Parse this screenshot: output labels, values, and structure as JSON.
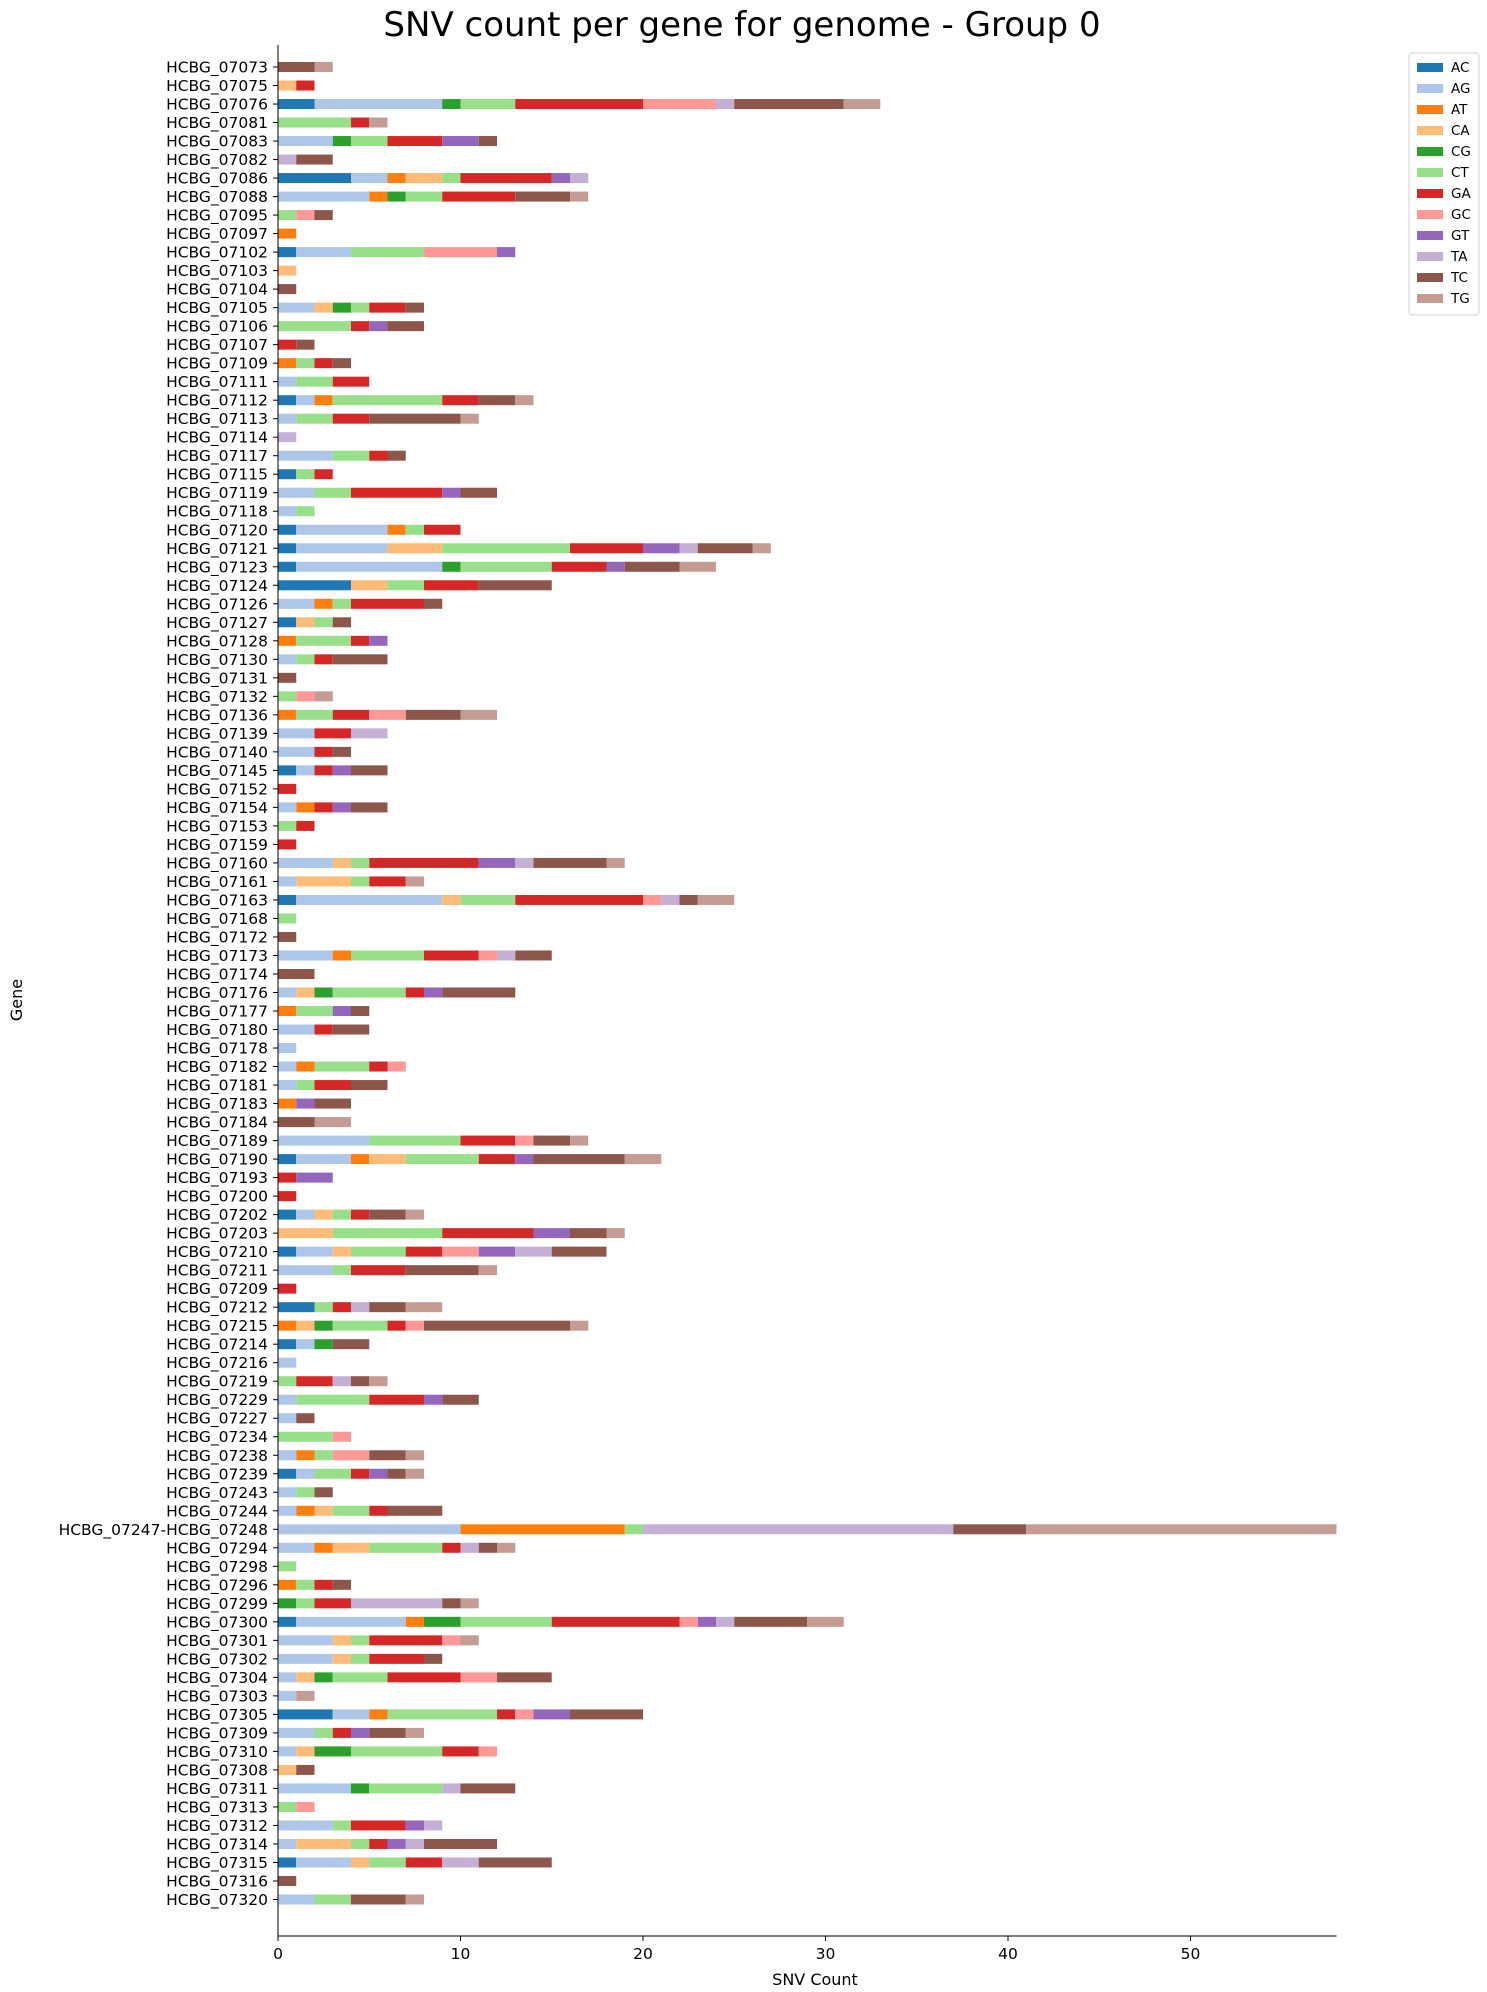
{
  "chart_data": {
    "type": "bar",
    "orientation": "horizontal",
    "stacked": true,
    "title": "SNV count per gene for genome - Group 0",
    "xlabel": "SNV Count",
    "ylabel": "Gene",
    "xlim": [
      0,
      58
    ],
    "xticks": [
      0,
      10,
      20,
      30,
      40,
      50
    ],
    "legend_position": "top-right (outside)",
    "grid": false,
    "colors": {
      "AC": "#1f77b4",
      "AG": "#aec7e8",
      "AT": "#ff7f0e",
      "CA": "#ffbb78",
      "CG": "#2ca02c",
      "CT": "#98df8a",
      "GA": "#d62728",
      "GC": "#ff9896",
      "GT": "#9467bd",
      "TA": "#c5b0d5",
      "TC": "#8c564b",
      "TG": "#c49c94"
    },
    "series_names": [
      "AC",
      "AG",
      "AT",
      "CA",
      "CG",
      "CT",
      "GA",
      "GC",
      "GT",
      "TA",
      "TC",
      "TG"
    ],
    "genes": [
      {
        "label": "HCBG_07073",
        "v": {
          "TC": 2,
          "TG": 1
        }
      },
      {
        "label": "HCBG_07075",
        "v": {
          "CA": 1,
          "GA": 1
        }
      },
      {
        "label": "HCBG_07076",
        "v": {
          "AC": 2,
          "AG": 7,
          "CG": 1,
          "CT": 3,
          "GA": 7,
          "GC": 4,
          "TA": 1,
          "TC": 6,
          "TG": 2
        }
      },
      {
        "label": "HCBG_07081",
        "v": {
          "CT": 4,
          "GA": 1,
          "TG": 1
        }
      },
      {
        "label": "HCBG_07083",
        "v": {
          "AG": 3,
          "CG": 1,
          "CT": 2,
          "GA": 3,
          "GT": 2,
          "TC": 1
        }
      },
      {
        "label": "HCBG_07082",
        "v": {
          "TA": 1,
          "TC": 2
        }
      },
      {
        "label": "HCBG_07086",
        "v": {
          "AC": 4,
          "AG": 2,
          "AT": 1,
          "CA": 2,
          "CT": 1,
          "GA": 5,
          "GT": 1,
          "TA": 1
        }
      },
      {
        "label": "HCBG_07088",
        "v": {
          "AG": 5,
          "AT": 1,
          "CG": 1,
          "CT": 2,
          "GA": 4,
          "TC": 3,
          "TG": 1
        }
      },
      {
        "label": "HCBG_07095",
        "v": {
          "CT": 1,
          "GC": 1,
          "TC": 1
        }
      },
      {
        "label": "HCBG_07097",
        "v": {
          "AT": 1
        }
      },
      {
        "label": "HCBG_07102",
        "v": {
          "AC": 1,
          "AG": 3,
          "CT": 4,
          "GC": 4,
          "GT": 1
        }
      },
      {
        "label": "HCBG_07103",
        "v": {
          "CA": 1
        }
      },
      {
        "label": "HCBG_07104",
        "v": {
          "TC": 1
        }
      },
      {
        "label": "HCBG_07105",
        "v": {
          "AG": 2,
          "CA": 1,
          "CG": 1,
          "CT": 1,
          "GA": 2,
          "TC": 1
        }
      },
      {
        "label": "HCBG_07106",
        "v": {
          "CT": 4,
          "GA": 1,
          "GT": 1,
          "TC": 2
        }
      },
      {
        "label": "HCBG_07107",
        "v": {
          "GA": 1,
          "TC": 1
        }
      },
      {
        "label": "HCBG_07109",
        "v": {
          "AT": 1,
          "CT": 1,
          "GA": 1,
          "TC": 1
        }
      },
      {
        "label": "HCBG_07111",
        "v": {
          "AG": 1,
          "CT": 2,
          "GA": 2
        }
      },
      {
        "label": "HCBG_07112",
        "v": {
          "AC": 1,
          "AG": 1,
          "AT": 1,
          "CT": 6,
          "GA": 2,
          "TC": 2,
          "TG": 1
        }
      },
      {
        "label": "HCBG_07113",
        "v": {
          "AG": 1,
          "CT": 2,
          "GA": 2,
          "TC": 5,
          "TG": 1
        }
      },
      {
        "label": "HCBG_07114",
        "v": {
          "TA": 1
        }
      },
      {
        "label": "HCBG_07117",
        "v": {
          "AG": 3,
          "CT": 2,
          "GA": 1,
          "TC": 1
        }
      },
      {
        "label": "HCBG_07115",
        "v": {
          "AC": 1,
          "CT": 1,
          "GA": 1
        }
      },
      {
        "label": "HCBG_07119",
        "v": {
          "AG": 2,
          "CT": 2,
          "GA": 5,
          "GT": 1,
          "TC": 2
        }
      },
      {
        "label": "HCBG_07118",
        "v": {
          "AG": 1,
          "CT": 1
        }
      },
      {
        "label": "HCBG_07120",
        "v": {
          "AC": 1,
          "AG": 5,
          "AT": 1,
          "CT": 1,
          "GA": 2
        }
      },
      {
        "label": "HCBG_07121",
        "v": {
          "AC": 1,
          "AG": 5,
          "CA": 3,
          "CT": 7,
          "GA": 4,
          "GT": 2,
          "TA": 1,
          "TC": 3,
          "TG": 1
        }
      },
      {
        "label": "HCBG_07123",
        "v": {
          "AC": 1,
          "AG": 8,
          "CG": 1,
          "CT": 5,
          "GA": 3,
          "GT": 1,
          "TC": 3,
          "TG": 2
        }
      },
      {
        "label": "HCBG_07124",
        "v": {
          "AC": 4,
          "CA": 2,
          "CT": 2,
          "GA": 3,
          "TC": 4
        }
      },
      {
        "label": "HCBG_07126",
        "v": {
          "AG": 2,
          "AT": 1,
          "CT": 1,
          "GA": 4,
          "TC": 1
        }
      },
      {
        "label": "HCBG_07127",
        "v": {
          "AC": 1,
          "CA": 1,
          "CT": 1,
          "TC": 1
        }
      },
      {
        "label": "HCBG_07128",
        "v": {
          "AT": 1,
          "CT": 3,
          "GA": 1,
          "GT": 1
        }
      },
      {
        "label": "HCBG_07130",
        "v": {
          "AG": 1,
          "CT": 1,
          "GA": 1,
          "TC": 3
        }
      },
      {
        "label": "HCBG_07131",
        "v": {
          "TC": 1
        }
      },
      {
        "label": "HCBG_07132",
        "v": {
          "CT": 1,
          "GC": 1,
          "TG": 1
        }
      },
      {
        "label": "HCBG_07136",
        "v": {
          "AT": 1,
          "CT": 2,
          "GA": 2,
          "GC": 2,
          "TC": 3,
          "TG": 2
        }
      },
      {
        "label": "HCBG_07139",
        "v": {
          "AG": 2,
          "GA": 2,
          "TA": 2
        }
      },
      {
        "label": "HCBG_07140",
        "v": {
          "AG": 2,
          "GA": 1,
          "TC": 1
        }
      },
      {
        "label": "HCBG_07145",
        "v": {
          "AC": 1,
          "AG": 1,
          "GA": 1,
          "GT": 1,
          "TC": 2
        }
      },
      {
        "label": "HCBG_07152",
        "v": {
          "GA": 1
        }
      },
      {
        "label": "HCBG_07154",
        "v": {
          "AG": 1,
          "AT": 1,
          "GA": 1,
          "GT": 1,
          "TC": 2
        }
      },
      {
        "label": "HCBG_07153",
        "v": {
          "CT": 1,
          "GA": 1
        }
      },
      {
        "label": "HCBG_07159",
        "v": {
          "GA": 1
        }
      },
      {
        "label": "HCBG_07160",
        "v": {
          "AG": 3,
          "CA": 1,
          "CT": 1,
          "GA": 6,
          "GT": 2,
          "TA": 1,
          "TC": 4,
          "TG": 1
        }
      },
      {
        "label": "HCBG_07161",
        "v": {
          "AG": 1,
          "CA": 3,
          "CT": 1,
          "GA": 2,
          "TG": 1
        }
      },
      {
        "label": "HCBG_07163",
        "v": {
          "AC": 1,
          "AG": 8,
          "CA": 1,
          "CT": 3,
          "GA": 7,
          "GC": 1,
          "TA": 1,
          "TC": 1,
          "TG": 2
        }
      },
      {
        "label": "HCBG_07168",
        "v": {
          "CT": 1
        }
      },
      {
        "label": "HCBG_07172",
        "v": {
          "TC": 1
        }
      },
      {
        "label": "HCBG_07173",
        "v": {
          "AG": 3,
          "AT": 1,
          "CT": 4,
          "GA": 3,
          "GC": 1,
          "TA": 1,
          "TC": 2
        }
      },
      {
        "label": "HCBG_07174",
        "v": {
          "TC": 2
        }
      },
      {
        "label": "HCBG_07176",
        "v": {
          "AG": 1,
          "CA": 1,
          "CG": 1,
          "CT": 4,
          "GA": 1,
          "GT": 1,
          "TC": 4
        }
      },
      {
        "label": "HCBG_07177",
        "v": {
          "AT": 1,
          "CT": 2,
          "GT": 1,
          "TC": 1
        }
      },
      {
        "label": "HCBG_07180",
        "v": {
          "AG": 2,
          "GA": 1,
          "TC": 2
        }
      },
      {
        "label": "HCBG_07178",
        "v": {
          "AG": 1
        }
      },
      {
        "label": "HCBG_07182",
        "v": {
          "AG": 1,
          "AT": 1,
          "CT": 3,
          "GA": 1,
          "GC": 1
        }
      },
      {
        "label": "HCBG_07181",
        "v": {
          "AG": 1,
          "CT": 1,
          "GA": 2,
          "TC": 2
        }
      },
      {
        "label": "HCBG_07183",
        "v": {
          "AT": 1,
          "GT": 1,
          "TC": 2
        }
      },
      {
        "label": "HCBG_07184",
        "v": {
          "TC": 2,
          "TG": 2
        }
      },
      {
        "label": "HCBG_07189",
        "v": {
          "AG": 5,
          "CT": 5,
          "GA": 3,
          "GC": 1,
          "TC": 2,
          "TG": 1
        }
      },
      {
        "label": "HCBG_07190",
        "v": {
          "AC": 1,
          "AG": 3,
          "AT": 1,
          "CA": 2,
          "CT": 4,
          "GA": 2,
          "GT": 1,
          "TC": 5,
          "TG": 2
        }
      },
      {
        "label": "HCBG_07193",
        "v": {
          "GA": 1,
          "GT": 2
        }
      },
      {
        "label": "HCBG_07200",
        "v": {
          "GA": 1
        }
      },
      {
        "label": "HCBG_07202",
        "v": {
          "AC": 1,
          "AG": 1,
          "CA": 1,
          "CT": 1,
          "GA": 1,
          "TC": 2,
          "TG": 1
        }
      },
      {
        "label": "HCBG_07203",
        "v": {
          "CA": 3,
          "CT": 6,
          "GA": 5,
          "GT": 2,
          "TC": 2,
          "TG": 1
        }
      },
      {
        "label": "HCBG_07210",
        "v": {
          "AC": 1,
          "AG": 2,
          "CA": 1,
          "CT": 3,
          "GA": 2,
          "GC": 2,
          "GT": 2,
          "TA": 2,
          "TC": 3
        }
      },
      {
        "label": "HCBG_07211",
        "v": {
          "AG": 3,
          "CT": 1,
          "GA": 3,
          "TC": 4,
          "TG": 1
        }
      },
      {
        "label": "HCBG_07209",
        "v": {
          "GA": 1
        }
      },
      {
        "label": "HCBG_07212",
        "v": {
          "AC": 2,
          "CT": 1,
          "GA": 1,
          "TA": 1,
          "TC": 2,
          "TG": 2
        }
      },
      {
        "label": "HCBG_07215",
        "v": {
          "AT": 1,
          "CA": 1,
          "CG": 1,
          "CT": 3,
          "GA": 1,
          "GC": 1,
          "TC": 8,
          "TG": 1
        }
      },
      {
        "label": "HCBG_07214",
        "v": {
          "AC": 1,
          "AG": 1,
          "CG": 1,
          "TC": 2
        }
      },
      {
        "label": "HCBG_07216",
        "v": {
          "AG": 1
        }
      },
      {
        "label": "HCBG_07219",
        "v": {
          "CT": 1,
          "GA": 2,
          "TA": 1,
          "TC": 1,
          "TG": 1
        }
      },
      {
        "label": "HCBG_07229",
        "v": {
          "AG": 1,
          "CT": 4,
          "GA": 3,
          "GT": 1,
          "TC": 2
        }
      },
      {
        "label": "HCBG_07227",
        "v": {
          "AG": 1,
          "TC": 1
        }
      },
      {
        "label": "HCBG_07234",
        "v": {
          "CT": 3,
          "GC": 1
        }
      },
      {
        "label": "HCBG_07238",
        "v": {
          "AG": 1,
          "AT": 1,
          "CT": 1,
          "GC": 2,
          "TC": 2,
          "TG": 1
        }
      },
      {
        "label": "HCBG_07239",
        "v": {
          "AC": 1,
          "AG": 1,
          "CT": 2,
          "GA": 1,
          "GT": 1,
          "TC": 1,
          "TG": 1
        }
      },
      {
        "label": "HCBG_07243",
        "v": {
          "AG": 1,
          "CT": 1,
          "TC": 1
        }
      },
      {
        "label": "HCBG_07244",
        "v": {
          "AG": 1,
          "AT": 1,
          "CA": 1,
          "CT": 2,
          "GA": 1,
          "TC": 3
        }
      },
      {
        "label": "HCBG_07247-HCBG_07248",
        "v": {
          "AG": 10,
          "AT": 9,
          "CT": 1,
          "TA": 17,
          "TC": 4,
          "TG": 17
        }
      },
      {
        "label": "HCBG_07294",
        "v": {
          "AG": 2,
          "AT": 1,
          "CA": 2,
          "CT": 4,
          "GA": 1,
          "TA": 1,
          "TC": 1,
          "TG": 1
        }
      },
      {
        "label": "HCBG_07298",
        "v": {
          "CT": 1
        }
      },
      {
        "label": "HCBG_07296",
        "v": {
          "AT": 1,
          "CT": 1,
          "GA": 1,
          "TC": 1
        }
      },
      {
        "label": "HCBG_07299",
        "v": {
          "CG": 1,
          "CT": 1,
          "GA": 2,
          "TA": 5,
          "TC": 1,
          "TG": 1
        }
      },
      {
        "label": "HCBG_07300",
        "v": {
          "AC": 1,
          "AG": 6,
          "AT": 1,
          "CG": 2,
          "CT": 5,
          "GA": 7,
          "GC": 1,
          "GT": 1,
          "TA": 1,
          "TC": 4,
          "TG": 2
        }
      },
      {
        "label": "HCBG_07301",
        "v": {
          "AG": 3,
          "CA": 1,
          "CT": 1,
          "GA": 4,
          "GC": 1,
          "TG": 1
        }
      },
      {
        "label": "HCBG_07302",
        "v": {
          "AG": 3,
          "CA": 1,
          "CT": 1,
          "GA": 3,
          "TC": 1
        }
      },
      {
        "label": "HCBG_07304",
        "v": {
          "AG": 1,
          "CA": 1,
          "CG": 1,
          "CT": 3,
          "GA": 4,
          "GC": 2,
          "TC": 3
        }
      },
      {
        "label": "HCBG_07303",
        "v": {
          "AG": 1,
          "TG": 1
        }
      },
      {
        "label": "HCBG_07305",
        "v": {
          "AC": 3,
          "AG": 2,
          "AT": 1,
          "CT": 6,
          "GA": 1,
          "GC": 1,
          "GT": 2,
          "TC": 4
        }
      },
      {
        "label": "HCBG_07309",
        "v": {
          "AG": 2,
          "CT": 1,
          "GA": 1,
          "GT": 1,
          "TC": 2,
          "TG": 1
        }
      },
      {
        "label": "HCBG_07310",
        "v": {
          "AG": 1,
          "CA": 1,
          "CG": 2,
          "CT": 5,
          "GA": 2,
          "GC": 1
        }
      },
      {
        "label": "HCBG_07308",
        "v": {
          "CA": 1,
          "TC": 1
        }
      },
      {
        "label": "HCBG_07311",
        "v": {
          "AG": 4,
          "CG": 1,
          "CT": 4,
          "TA": 1,
          "TC": 3
        }
      },
      {
        "label": "HCBG_07313",
        "v": {
          "CT": 1,
          "GC": 1
        }
      },
      {
        "label": "HCBG_07312",
        "v": {
          "AG": 3,
          "CT": 1,
          "GA": 3,
          "GT": 1,
          "TA": 1
        }
      },
      {
        "label": "HCBG_07314",
        "v": {
          "AG": 1,
          "CA": 3,
          "CT": 1,
          "GA": 1,
          "GT": 1,
          "TA": 1,
          "TC": 4
        }
      },
      {
        "label": "HCBG_07315",
        "v": {
          "AC": 1,
          "AG": 3,
          "CA": 1,
          "CT": 2,
          "GA": 2,
          "TA": 2,
          "TC": 4
        }
      },
      {
        "label": "HCBG_07316",
        "v": {
          "TC": 1
        }
      },
      {
        "label": "HCBG_07320",
        "v": {
          "AG": 2,
          "CT": 2,
          "TC": 3,
          "TG": 1
        }
      }
    ]
  }
}
